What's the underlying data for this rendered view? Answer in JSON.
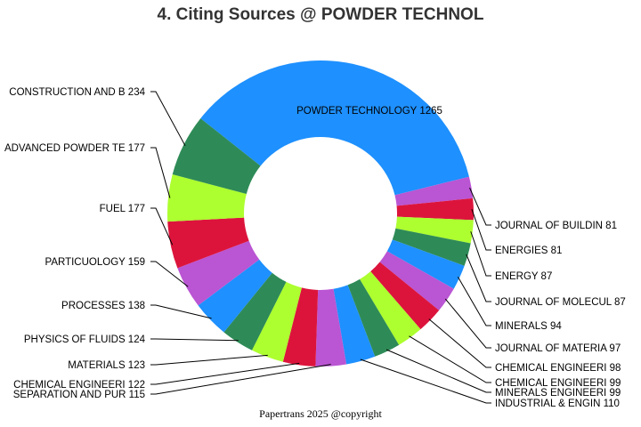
{
  "chart_data": {
    "type": "pie",
    "title": "4. Citing Sources @ POWDER TECHNOL",
    "donut": true,
    "categories": [
      "POWDER TECHNOLOGY",
      "JOURNAL OF BUILDIN",
      "ENERGIES",
      "ENERGY",
      "JOURNAL OF MOLECUL",
      "MINERALS",
      "JOURNAL OF MATERIA",
      "CHEMICAL ENGINEERI",
      "CHEMICAL ENGINEERI",
      "MINERALS ENGINEERI",
      "INDUSTRIAL & ENGIN",
      "SEPARATION AND PUR",
      "CHEMICAL ENGINEERI",
      "MATERIALS",
      "PHYSICS OF FLUIDS",
      "PROCESSES",
      "PARTICUOLOGY",
      "FUEL",
      "ADVANCED POWDER TE",
      "CONSTRUCTION AND B"
    ],
    "values": [
      1265,
      81,
      81,
      87,
      87,
      94,
      97,
      98,
      99,
      99,
      110,
      115,
      122,
      123,
      124,
      138,
      159,
      177,
      177,
      234
    ],
    "labels": [
      "POWDER TECHNOLOGY 1265",
      "JOURNAL OF BUILDIN 81",
      "ENERGIES 81",
      "ENERGY 87",
      "JOURNAL OF MOLECUL 87",
      "MINERALS 94",
      "JOURNAL OF MATERIA 97",
      "CHEMICAL ENGINEERI 98",
      "CHEMICAL ENGINEERI 99",
      "MINERALS ENGINEERI 99",
      "INDUSTRIAL & ENGIN 110",
      "SEPARATION AND PUR 115",
      "CHEMICAL ENGINEERI 122",
      "MATERIALS 123",
      "PHYSICS OF FLUIDS 124",
      "PROCESSES 138",
      "PARTICUOLOGY 159",
      "FUEL 177",
      "ADVANCED POWDER TE 177",
      "CONSTRUCTION AND B 234"
    ],
    "colors": [
      "#1e90ff",
      "#ba55d3",
      "#dc143c",
      "#adff2f",
      "#2e8b57",
      "#1e90ff",
      "#ba55d3",
      "#dc143c",
      "#adff2f",
      "#2e8b57",
      "#1e90ff",
      "#ba55d3",
      "#dc143c",
      "#adff2f",
      "#2e8b57",
      "#1e90ff",
      "#ba55d3",
      "#dc143c",
      "#adff2f",
      "#2e8b57"
    ],
    "footer": "Papertrans 2025 @copyright"
  }
}
